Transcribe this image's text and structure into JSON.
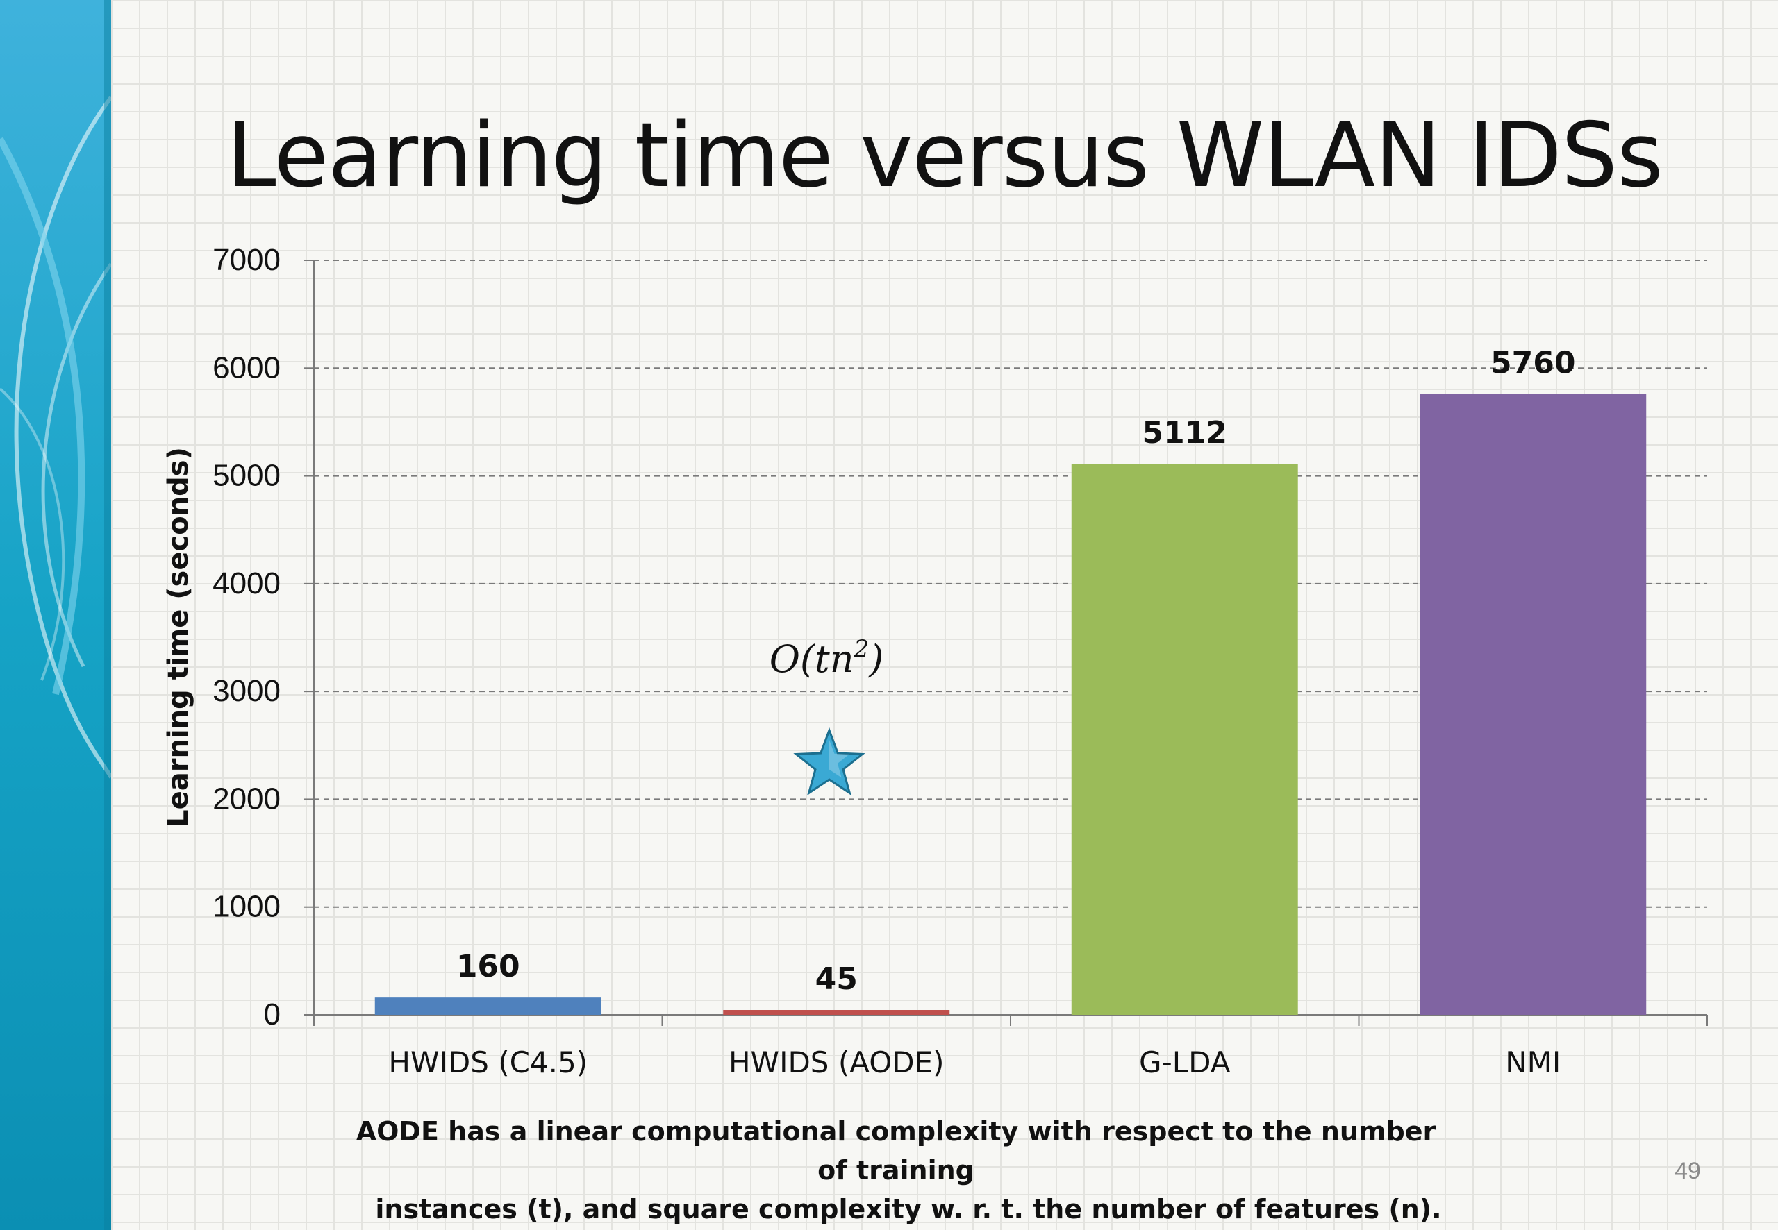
{
  "slide": {
    "title": "Learning time versus WLAN IDSs",
    "caption_line1": "AODE has a linear computational complexity with respect to the number of training",
    "caption_line2": "instances  (t), and  square complexity w. r. t. the number of features (n).",
    "page_number": "49"
  },
  "annotation": {
    "formula_base": "O(tn",
    "formula_sup": "2",
    "formula_close": ")",
    "icon": "star-icon"
  },
  "colors": {
    "star": "#3aa9d4",
    "left_band": "#1aa6c9"
  },
  "chart_data": {
    "type": "bar",
    "categories": [
      "HWIDS (C4.5)",
      "HWIDS (AODE)",
      "G-LDA",
      "NMI"
    ],
    "values": [
      160,
      45,
      5112,
      5760
    ],
    "value_labels": [
      "160",
      "45",
      "5112",
      "5760"
    ],
    "colors": [
      "#4f81bd",
      "#c0504d",
      "#9bbb59",
      "#8064a2"
    ],
    "title": "",
    "xlabel": "",
    "ylabel": "Learning time (seconds)",
    "ylim": [
      0,
      7000
    ],
    "yticks": [
      0,
      1000,
      2000,
      3000,
      4000,
      5000,
      6000,
      7000
    ],
    "grid": true,
    "legend": "none"
  }
}
